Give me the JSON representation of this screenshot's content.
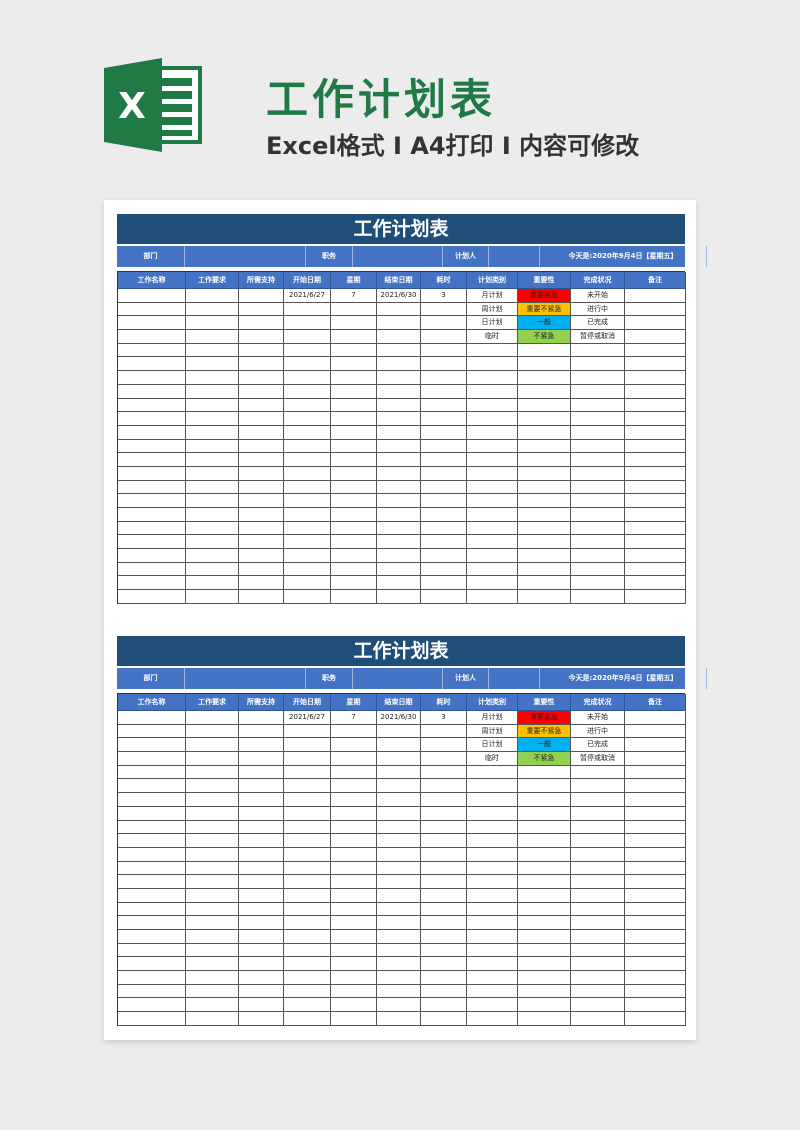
{
  "header": {
    "title": "工作计划表",
    "subtitle": "Excel格式 I A4打印 I 内容可修改",
    "logo_letter": "X"
  },
  "sheet": {
    "title": "工作计划表",
    "info": [
      "部门",
      "",
      "职务",
      "",
      "计划人",
      "",
      "今天是:2020年9月4日【星期五】"
    ],
    "columns": [
      "工作名称",
      "工作要求",
      "所需支持",
      "开始日期",
      "星期",
      "结束日期",
      "耗时",
      "计划类别",
      "重要性",
      "完成状况",
      "备注"
    ],
    "rows": [
      [
        "",
        "",
        "",
        "2021/6/27",
        "7",
        "2021/6/30",
        "3",
        "月计划",
        "重要紧急",
        "未开始",
        ""
      ],
      [
        "",
        "",
        "",
        "",
        "",
        "",
        "",
        "周计划",
        "重要不紧急",
        "进行中",
        ""
      ],
      [
        "",
        "",
        "",
        "",
        "",
        "",
        "",
        "日计划",
        "一般",
        "已完成",
        ""
      ],
      [
        "",
        "",
        "",
        "",
        "",
        "",
        "",
        "临时",
        "不紧急",
        "暂停或取消",
        ""
      ]
    ],
    "importance_colors": {
      "重要紧急": "#ff0000",
      "重要不紧急": "#ffc000",
      "一般": "#00b0f0",
      "不紧急": "#92d050"
    }
  },
  "colors": {
    "brand_green": "#1f7a45",
    "title_bar": "#1f4e79",
    "header_blue": "#4472c4"
  }
}
